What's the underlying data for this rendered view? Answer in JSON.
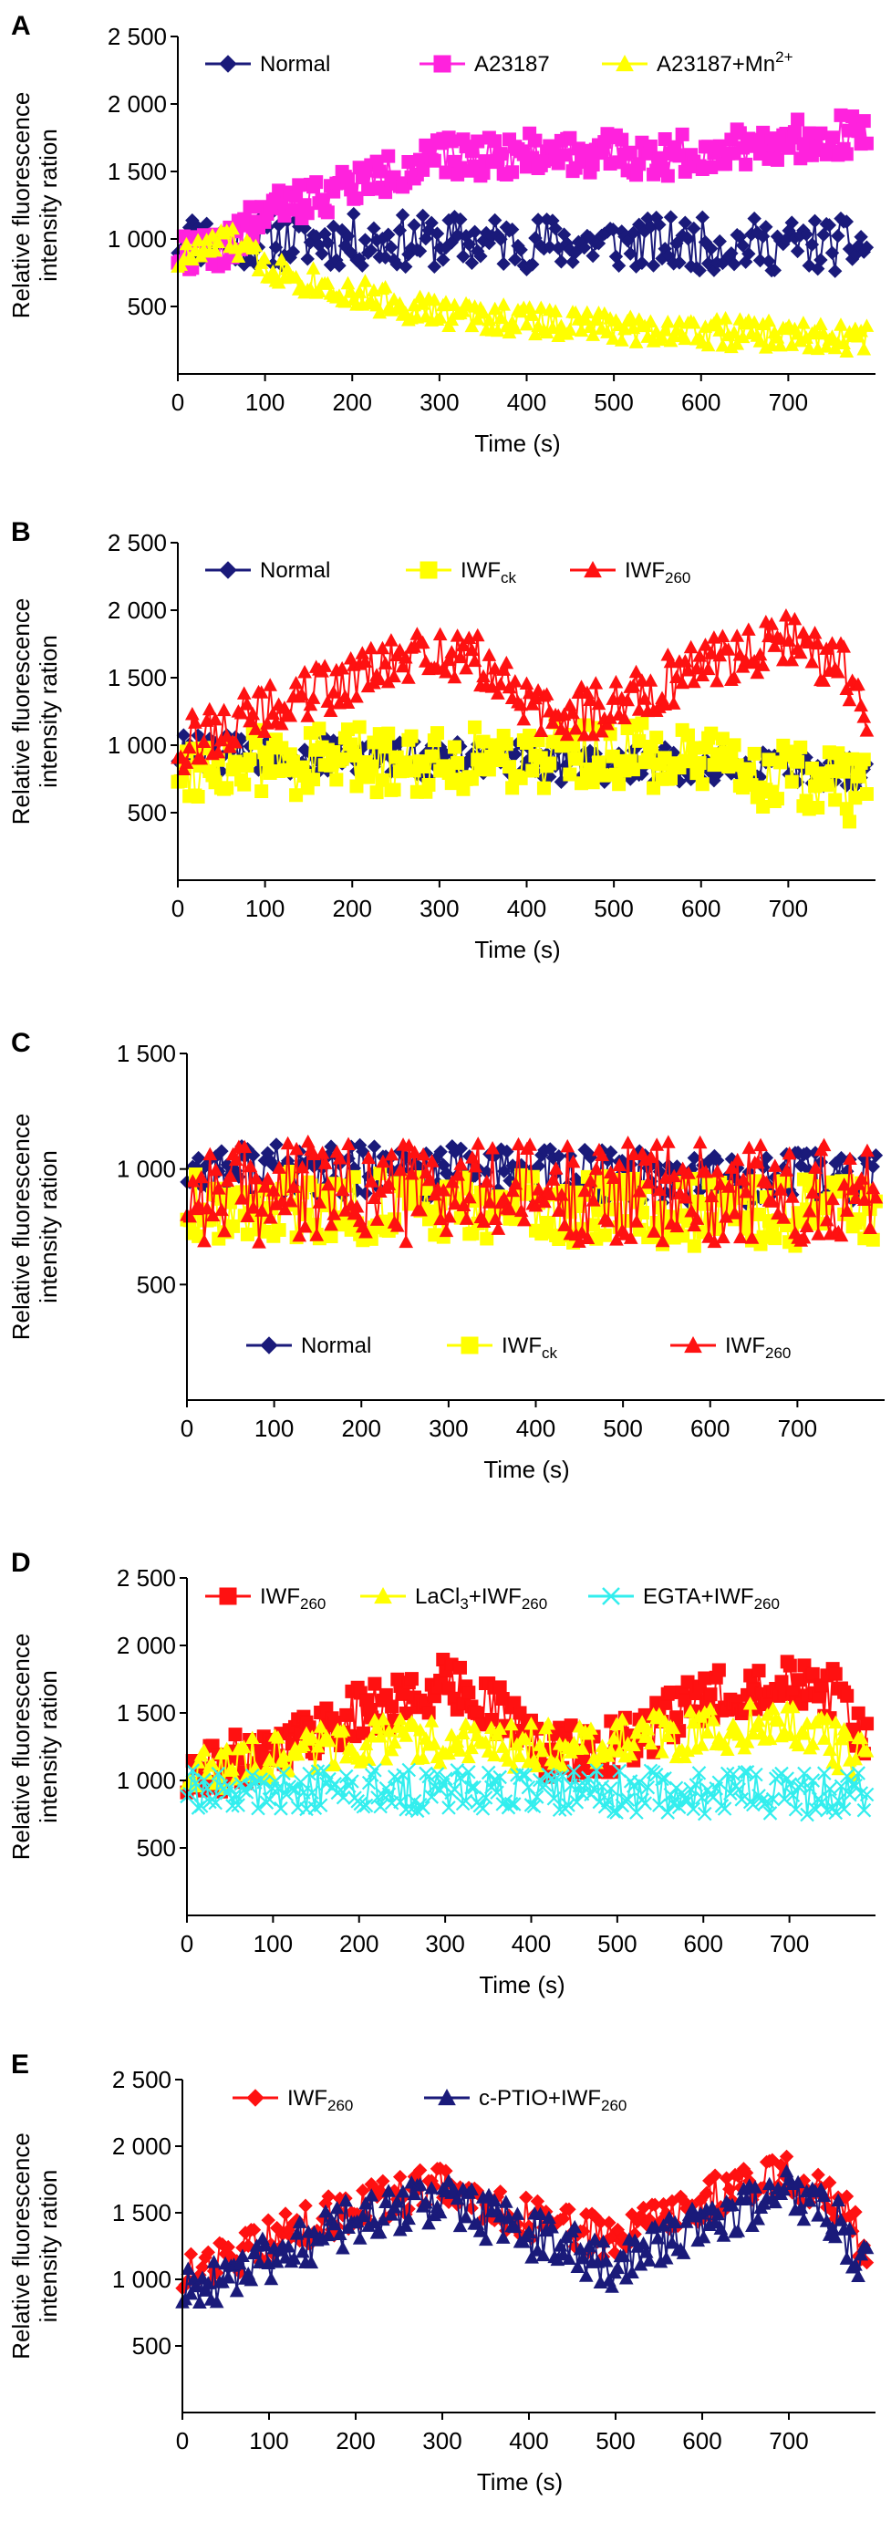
{
  "colors": {
    "navy": "#1a1a7a",
    "magenta": "#ff22dd",
    "yellow": "#ffff00",
    "red": "#ff1111",
    "cyan": "#33eeee"
  },
  "chart_data": [
    {
      "type": "scatter",
      "panel": "A",
      "ylabel": [
        "Relative fluorescence",
        "intensity ration"
      ],
      "xlabel": "Time (s)",
      "xlim": [
        0,
        800
      ],
      "ylim": [
        0,
        2500
      ],
      "xticks": [
        0,
        100,
        200,
        300,
        400,
        500,
        600,
        700
      ],
      "yticks": [
        500,
        1000,
        1500,
        2000,
        2500
      ],
      "ytick_labels": [
        "500",
        "1 000",
        "1 500",
        "2 000",
        "2 500"
      ],
      "legend": "top",
      "series": [
        {
          "name": "Normal",
          "name_sub": "",
          "name_sup": "",
          "color": "navy",
          "marker": "diamond",
          "anchors": [
            [
              0,
              1000
            ],
            [
              800,
              950
            ]
          ],
          "spread": 200,
          "seed": 11
        },
        {
          "name": "A23187",
          "name_sub": "",
          "name_sup": "",
          "color": "magenta",
          "marker": "square",
          "anchors": [
            [
              0,
              900
            ],
            [
              60,
              950
            ],
            [
              100,
              1200
            ],
            [
              200,
              1400
            ],
            [
              300,
              1600
            ],
            [
              450,
              1650
            ],
            [
              550,
              1600
            ],
            [
              650,
              1700
            ],
            [
              800,
              1800
            ]
          ],
          "spread": 150,
          "seed": 22
        },
        {
          "name": "A23187+Mn",
          "name_sub": "",
          "name_sup": "2+",
          "color": "yellow",
          "marker": "triangle",
          "anchors": [
            [
              0,
              850
            ],
            [
              60,
              1000
            ],
            [
              100,
              800
            ],
            [
              200,
              600
            ],
            [
              300,
              450
            ],
            [
              500,
              350
            ],
            [
              800,
              250
            ]
          ],
          "spread": 110,
          "seed": 33
        }
      ]
    },
    {
      "type": "scatter",
      "panel": "B",
      "ylabel": [
        "Relative fluorescence",
        "intensity ration"
      ],
      "xlabel": "Time (s)",
      "xlim": [
        0,
        800
      ],
      "ylim": [
        0,
        2500
      ],
      "xticks": [
        0,
        100,
        200,
        300,
        400,
        500,
        600,
        700
      ],
      "yticks": [
        500,
        1000,
        1500,
        2000,
        2500
      ],
      "ytick_labels": [
        "500",
        "1 000",
        "1 500",
        "2 000",
        "2 500"
      ],
      "legend": "top",
      "series": [
        {
          "name": "Normal",
          "name_sub": "",
          "name_sup": "",
          "color": "navy",
          "marker": "diamond",
          "anchors": [
            [
              0,
              950
            ],
            [
              800,
              800
            ]
          ],
          "spread": 140,
          "seed": 44
        },
        {
          "name": "IWF",
          "name_sub": "ck",
          "name_sup": "",
          "color": "yellow",
          "marker": "square",
          "anchors": [
            [
              0,
              850
            ],
            [
              300,
              900
            ],
            [
              500,
              950
            ],
            [
              800,
              650
            ]
          ],
          "spread": 250,
          "seed": 55
        },
        {
          "name": "IWF",
          "name_sub": "260",
          "name_sup": "",
          "color": "red",
          "marker": "triangle",
          "anchors": [
            [
              0,
              1000
            ],
            [
              100,
              1250
            ],
            [
              200,
              1500
            ],
            [
              300,
              1700
            ],
            [
              350,
              1600
            ],
            [
              420,
              1200
            ],
            [
              500,
              1300
            ],
            [
              600,
              1600
            ],
            [
              700,
              1800
            ],
            [
              760,
              1600
            ],
            [
              800,
              1100
            ]
          ],
          "spread": 200,
          "seed": 66
        }
      ]
    },
    {
      "type": "scatter",
      "panel": "C",
      "ylabel": [
        "Relative fluorescence",
        "intensity ration"
      ],
      "xlabel": "Time (s)",
      "xlim": [
        0,
        800
      ],
      "ylim": [
        0,
        1500
      ],
      "xticks": [
        0,
        100,
        200,
        300,
        400,
        500,
        600,
        700
      ],
      "yticks": [
        500,
        1000,
        1500
      ],
      "ytick_labels": [
        "500",
        "1 000",
        "1 500"
      ],
      "legend": "bottom",
      "series": [
        {
          "name": "Normal",
          "name_sub": "",
          "name_sup": "",
          "color": "navy",
          "marker": "diamond",
          "anchors": [
            [
              0,
              1000
            ],
            [
              800,
              950
            ]
          ],
          "spread": 120,
          "seed": 77
        },
        {
          "name": "IWF",
          "name_sub": "ck",
          "name_sup": "",
          "color": "yellow",
          "marker": "square",
          "anchors": [
            [
              0,
              850
            ],
            [
              800,
              800
            ]
          ],
          "spread": 150,
          "seed": 88
        },
        {
          "name": "IWF",
          "name_sub": "260",
          "name_sup": "",
          "color": "red",
          "marker": "triangle",
          "anchors": [
            [
              0,
              900
            ],
            [
              800,
              900
            ]
          ],
          "spread": 220,
          "seed": 99
        }
      ]
    },
    {
      "type": "scatter",
      "panel": "D",
      "ylabel": [
        "Relative fluorescence",
        "intensity ration"
      ],
      "xlabel": "Time (s)",
      "xlim": [
        0,
        800
      ],
      "ylim": [
        0,
        2500
      ],
      "xticks": [
        0,
        100,
        200,
        300,
        400,
        500,
        600,
        700
      ],
      "yticks": [
        500,
        1000,
        1500,
        2000,
        2500
      ],
      "ytick_labels": [
        "500",
        "1 000",
        "1 500",
        "2 000",
        "2 500"
      ],
      "legend": "top",
      "series": [
        {
          "name": "IWF",
          "name_sub": "260",
          "name_sup": "",
          "color": "red",
          "marker": "square",
          "anchors": [
            [
              0,
              1000
            ],
            [
              100,
              1250
            ],
            [
              200,
              1500
            ],
            [
              300,
              1700
            ],
            [
              350,
              1600
            ],
            [
              420,
              1200
            ],
            [
              500,
              1250
            ],
            [
              600,
              1600
            ],
            [
              700,
              1800
            ],
            [
              760,
              1600
            ],
            [
              800,
              1100
            ]
          ],
          "spread": 200,
          "seed": 111
        },
        {
          "name": "LaCl",
          "name_sub": "3",
          "name_sup": "",
          "suffix": "+IWF",
          "suffix_sub": "260",
          "color": "yellow",
          "marker": "triangle",
          "anchors": [
            [
              0,
              1050
            ],
            [
              200,
              1300
            ],
            [
              400,
              1250
            ],
            [
              600,
              1350
            ],
            [
              700,
              1450
            ],
            [
              800,
              1100
            ]
          ],
          "spread": 170,
          "seed": 122
        },
        {
          "name": "EGTA+IWF",
          "name_sub": "260",
          "name_sup": "",
          "color": "cyan",
          "marker": "x",
          "anchors": [
            [
              0,
              950
            ],
            [
              800,
              900
            ]
          ],
          "spread": 160,
          "seed": 133
        }
      ]
    },
    {
      "type": "scatter",
      "panel": "E",
      "ylabel": [
        "Relative fluorescence",
        "intensity ration"
      ],
      "xlabel": "Time (s)",
      "xlim": [
        0,
        800
      ],
      "ylim": [
        0,
        2500
      ],
      "xticks": [
        0,
        100,
        200,
        300,
        400,
        500,
        600,
        700
      ],
      "yticks": [
        500,
        1000,
        1500,
        2000,
        2500
      ],
      "ytick_labels": [
        "500",
        "1 000",
        "1 500",
        "2 000",
        "2 500"
      ],
      "legend": "top",
      "series": [
        {
          "name": "IWF",
          "name_sub": "260",
          "name_sup": "",
          "color": "red",
          "marker": "diamond",
          "anchors": [
            [
              0,
              1000
            ],
            [
              100,
              1300
            ],
            [
              200,
              1550
            ],
            [
              300,
              1700
            ],
            [
              400,
              1450
            ],
            [
              500,
              1300
            ],
            [
              600,
              1600
            ],
            [
              700,
              1800
            ],
            [
              760,
              1550
            ],
            [
              800,
              1100
            ]
          ],
          "spread": 160,
          "seed": 144
        },
        {
          "name": "c-PTIO+IWF",
          "name_sub": "260",
          "name_sup": "",
          "color": "navy",
          "marker": "triangle",
          "anchors": [
            [
              0,
              900
            ],
            [
              100,
              1150
            ],
            [
              200,
              1450
            ],
            [
              300,
              1600
            ],
            [
              400,
              1350
            ],
            [
              500,
              1100
            ],
            [
              600,
              1450
            ],
            [
              700,
              1650
            ],
            [
              760,
              1400
            ],
            [
              800,
              950
            ]
          ],
          "spread": 180,
          "seed": 155
        }
      ]
    }
  ]
}
